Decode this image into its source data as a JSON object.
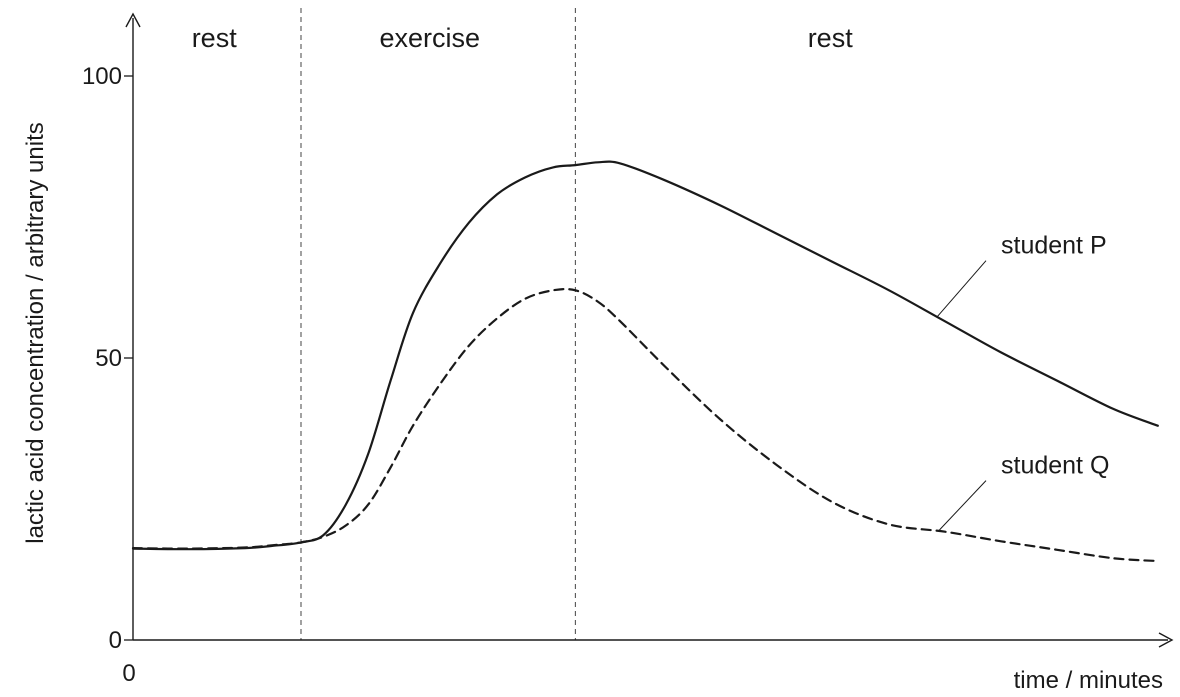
{
  "chart_data": {
    "type": "line",
    "title": "",
    "xlabel": "time / minutes",
    "ylabel": "lactic acid concentration / arbitrary units",
    "ylim": [
      0,
      100
    ],
    "xlim": [
      0,
      18.5
    ],
    "y_ticks": [
      0,
      50,
      100
    ],
    "x_ticks": [
      0
    ],
    "grid": false,
    "legend": "none",
    "phase_boundaries": [
      3,
      7.9
    ],
    "phases": [
      {
        "label": "rest",
        "center": 1.45
      },
      {
        "label": "exercise",
        "center": 5.3
      },
      {
        "label": "rest",
        "center": 12.45
      }
    ],
    "series": [
      {
        "name": "student P",
        "style": "solid",
        "color": "#1a1a1a",
        "x": [
          0,
          1,
          2,
          2.5,
          3,
          3.4,
          3.8,
          4.2,
          4.6,
          5.0,
          5.5,
          6.0,
          6.5,
          7.0,
          7.5,
          7.9,
          8.3,
          8.7,
          9.5,
          10.5,
          11.5,
          12.5,
          13.5,
          14.5,
          15.5,
          16.5,
          17.5,
          18.3
        ],
        "y": [
          16.2,
          16.1,
          16.3,
          16.7,
          17.3,
          18.6,
          24,
          33,
          46,
          58,
          67,
          74,
          79,
          82,
          83.8,
          84.2,
          84.7,
          84.5,
          81.5,
          77,
          72,
          67,
          62,
          56.5,
          51,
          46,
          41,
          38
        ]
      },
      {
        "name": "student Q",
        "style": "dashed",
        "color": "#1a1a1a",
        "x": [
          0,
          1,
          2,
          2.5,
          3,
          3.4,
          3.8,
          4.2,
          4.6,
          5.0,
          5.5,
          6.0,
          6.5,
          7.0,
          7.5,
          7.9,
          8.3,
          8.7,
          9.5,
          10.5,
          11.5,
          12.5,
          13.5,
          14.5,
          15.5,
          16.5,
          17.5,
          18.3
        ],
        "y": [
          16.3,
          16.2,
          16.4,
          16.8,
          17.3,
          18.3,
          20.3,
          24,
          30.6,
          38,
          45.6,
          52.2,
          57,
          60.5,
          62,
          62,
          60,
          56.5,
          48.5,
          39,
          31,
          24.4,
          20.5,
          19.2,
          17.5,
          16,
          14.5,
          14
        ]
      }
    ],
    "annotations": [
      {
        "text": "student P",
        "series": "student P",
        "label_x": 15.5,
        "label_y": 68.5,
        "anchor_x": 14.35,
        "anchor_y": 57.2
      },
      {
        "text": "student Q",
        "series": "student Q",
        "label_x": 15.5,
        "label_y": 29.5,
        "anchor_x": 14.4,
        "anchor_y": 19.5
      }
    ]
  }
}
